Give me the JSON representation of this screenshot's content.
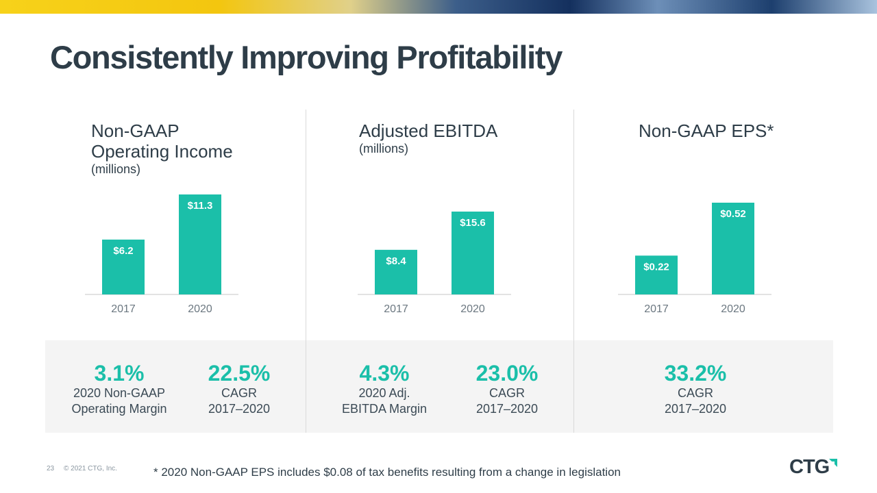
{
  "title": "Consistently Improving Profitability",
  "chart_data": [
    {
      "type": "bar",
      "title": "Non-GAAP Operating Income",
      "subtitle": "(millions)",
      "categories": [
        "2017",
        "2020"
      ],
      "values": [
        6.2,
        11.3
      ],
      "value_labels": [
        "$6.2",
        "$11.3"
      ],
      "color": "#1bbfa9"
    },
    {
      "type": "bar",
      "title": "Adjusted EBITDA",
      "subtitle": "(millions)",
      "categories": [
        "2017",
        "2020"
      ],
      "values": [
        8.4,
        15.6
      ],
      "value_labels": [
        "$8.4",
        "$15.6"
      ],
      "color": "#1bbfa9"
    },
    {
      "type": "bar",
      "title": "Non-GAAP EPS*",
      "categories": [
        "2017",
        "2020"
      ],
      "values": [
        0.22,
        0.52
      ],
      "value_labels": [
        "$0.22",
        "$0.52"
      ],
      "color": "#1bbfa9"
    }
  ],
  "stats": [
    {
      "value": "3.1%",
      "lines": [
        "2020 Non-GAAP",
        "Operating Margin"
      ]
    },
    {
      "value": "22.5%",
      "lines": [
        "CAGR",
        "2017–2020"
      ]
    },
    {
      "value": "4.3%",
      "lines": [
        "2020 Adj.",
        "EBITDA Margin"
      ]
    },
    {
      "value": "23.0%",
      "lines": [
        "CAGR",
        "2017–2020"
      ]
    },
    {
      "value": "33.2%",
      "lines": [
        "CAGR",
        "2017–2020"
      ]
    }
  ],
  "footer": {
    "page": "23",
    "copyright": "© 2021 CTG, Inc.",
    "footnote": "* 2020 Non-GAAP EPS includes $0.08 of tax benefits resulting from a change in legislation",
    "logo": "CTG"
  }
}
